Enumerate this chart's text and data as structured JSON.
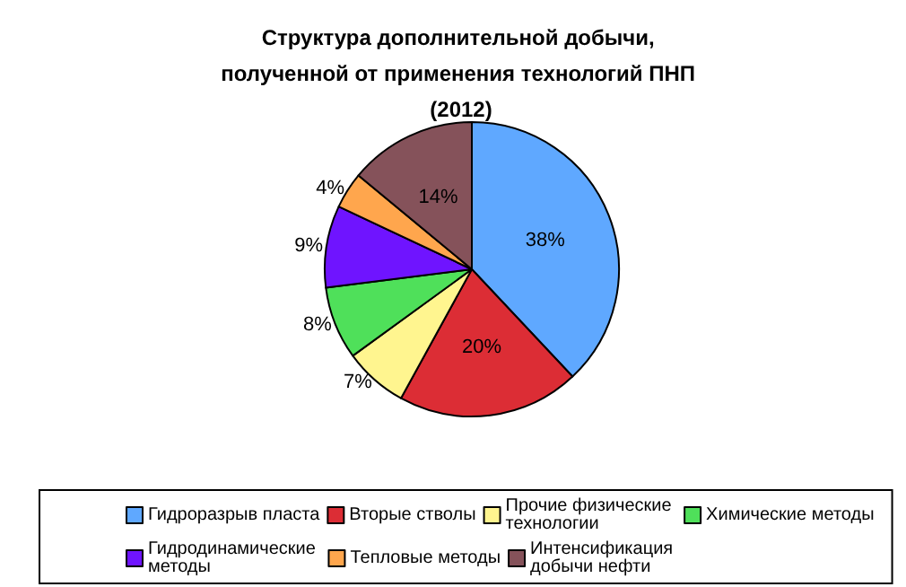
{
  "chart_data": {
    "type": "pie",
    "title": "Структура дополнительной добычи, полученной от применения технологий ПНП (2012)",
    "categories": [
      "Гидроразрыв пласта",
      "Вторые стволы",
      "Прочие физические технологии",
      "Химические методы",
      "Гидродинамические методы",
      "Тепловые методы",
      "Интенсификация добычи нефти"
    ],
    "values": [
      38,
      20,
      7,
      8,
      9,
      4,
      14
    ],
    "colors": [
      "#5fa8ff",
      "#dc2d35",
      "#fff58f",
      "#4fe05a",
      "#6f14ff",
      "#ffa64d",
      "#85525a"
    ],
    "value_labels": [
      "38%",
      "20%",
      "7%",
      "8%",
      "9%",
      "4%",
      "14%"
    ],
    "legend": "bottom"
  }
}
